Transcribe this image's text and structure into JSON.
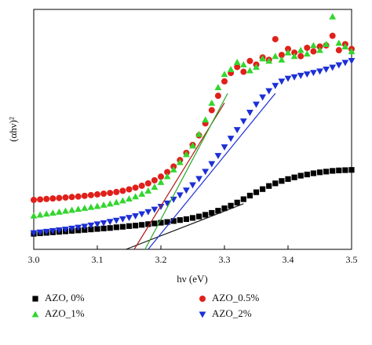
{
  "chart_data": {
    "type": "scatter",
    "x_label": "hν (eV)",
    "y_label": "(αhν)²",
    "xlim": [
      3.0,
      3.5
    ],
    "ylim": [
      0,
      100
    ],
    "xticks": [
      {
        "value": 3.0,
        "label": "3.0"
      },
      3.1,
      3.2,
      3.3,
      3.4,
      3.5
    ],
    "legend": "bottom",
    "x": [
      3.0,
      3.01,
      3.02,
      3.03,
      3.04,
      3.05,
      3.06,
      3.07,
      3.08,
      3.09,
      3.1,
      3.11,
      3.12,
      3.13,
      3.14,
      3.15,
      3.16,
      3.17,
      3.18,
      3.19,
      3.2,
      3.21,
      3.22,
      3.23,
      3.24,
      3.25,
      3.26,
      3.27,
      3.28,
      3.29,
      3.3,
      3.31,
      3.32,
      3.33,
      3.34,
      3.35,
      3.36,
      3.37,
      3.38,
      3.39,
      3.4,
      3.41,
      3.42,
      3.43,
      3.44,
      3.45,
      3.46,
      3.47,
      3.48,
      3.49,
      3.5
    ],
    "series": [
      {
        "name": "AZO, 0%",
        "color": "#000000",
        "marker": "square",
        "values": [
          6.5,
          6.7,
          6.9,
          7.1,
          7.3,
          7.5,
          7.7,
          7.9,
          8.1,
          8.3,
          8.5,
          8.7,
          8.9,
          9.2,
          9.4,
          9.7,
          9.9,
          10.2,
          10.5,
          10.8,
          11.1,
          11.4,
          11.8,
          12.2,
          12.6,
          13.1,
          13.7,
          14.4,
          15.2,
          16.1,
          17.1,
          18.2,
          19.5,
          20.9,
          22.4,
          23.8,
          25.1,
          26.4,
          27.5,
          28.5,
          29.3,
          30.0,
          30.7,
          31.2,
          31.7,
          32.1,
          32.4,
          32.7,
          32.9,
          33.0,
          33.1
        ]
      },
      {
        "name": "AZO_0.5%",
        "color": "#e0201b",
        "marker": "circle",
        "values": [
          20.6,
          20.8,
          21.0,
          21.2,
          21.4,
          21.6,
          21.8,
          22.0,
          22.3,
          22.6,
          22.9,
          23.2,
          23.5,
          23.9,
          24.4,
          25.0,
          25.7,
          26.5,
          27.5,
          28.8,
          30.3,
          32.2,
          34.5,
          37.2,
          40.2,
          43.5,
          47.5,
          52.5,
          58.0,
          64.0,
          70.0,
          73.5,
          76.0,
          74.0,
          78.5,
          77.0,
          80.0,
          79.0,
          87.6,
          81.0,
          83.5,
          82.0,
          80.5,
          84.0,
          82.5,
          84.5,
          85.0,
          89.0,
          83.0,
          85.5,
          83.5
        ]
      },
      {
        "name": "AZO_1%",
        "color": "#33d62e",
        "marker": "triangle-up",
        "values": [
          14.0,
          14.4,
          14.8,
          15.2,
          15.6,
          16.0,
          16.4,
          16.8,
          17.2,
          17.6,
          18.0,
          18.5,
          19.0,
          19.6,
          20.3,
          21.1,
          22.0,
          23.1,
          24.4,
          26.0,
          28.0,
          30.4,
          33.2,
          36.3,
          39.6,
          43.2,
          48.0,
          54.0,
          61.0,
          67.5,
          73.0,
          75.0,
          78.0,
          77.0,
          74.5,
          76.0,
          79.5,
          78.5,
          80.5,
          79.0,
          82.0,
          80.5,
          83.0,
          81.5,
          85.0,
          83.0,
          85.5,
          97.0,
          86.0,
          84.5,
          82.5
        ]
      },
      {
        "name": "AZO_2%",
        "color": "#1c2fd6",
        "marker": "triangle-down",
        "values": [
          6.8,
          7.1,
          7.4,
          7.7,
          8.0,
          8.3,
          8.7,
          9.1,
          9.5,
          10.0,
          10.5,
          11.0,
          11.5,
          12.0,
          12.6,
          13.2,
          13.9,
          14.7,
          15.6,
          16.6,
          17.8,
          19.2,
          20.8,
          22.6,
          24.6,
          26.8,
          29.4,
          32.4,
          35.6,
          39.0,
          42.6,
          46.2,
          49.8,
          53.4,
          57.0,
          60.4,
          63.4,
          66.0,
          68.2,
          70.0,
          71.2,
          71.8,
          72.4,
          73.0,
          73.6,
          74.2,
          75.0,
          75.8,
          76.8,
          77.8,
          78.6
        ]
      }
    ],
    "fit_lines": [
      {
        "color": "#1a1a1a",
        "x": [
          3.145,
          3.33
        ],
        "y": [
          0,
          19
        ]
      },
      {
        "color": "#b01818",
        "x": [
          3.158,
          3.3
        ],
        "y": [
          0,
          61
        ]
      },
      {
        "color": "#2aa82a",
        "x": [
          3.175,
          3.305
        ],
        "y": [
          0,
          65
        ]
      },
      {
        "color": "#1c2fd6",
        "x": [
          3.18,
          3.38
        ],
        "y": [
          0,
          65
        ]
      }
    ]
  }
}
